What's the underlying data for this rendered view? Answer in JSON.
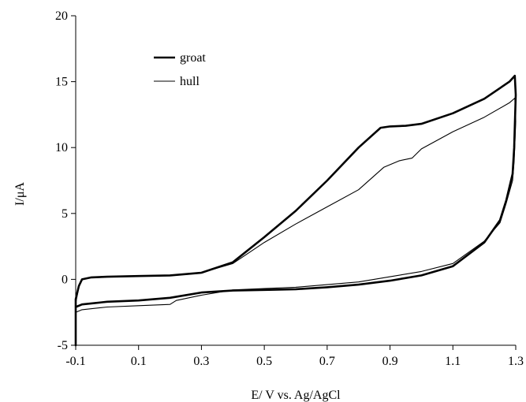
{
  "chart_data": {
    "type": "line",
    "title": "",
    "xlabel": "E/ V vs. Ag/AgCl",
    "ylabel": "I/μA",
    "xlim": [
      -0.1,
      1.3
    ],
    "ylim": [
      -5,
      20
    ],
    "x_ticks": [
      -0.1,
      0.1,
      0.3,
      0.5,
      0.7,
      0.9,
      1.1,
      1.3
    ],
    "y_ticks": [
      -5,
      0,
      5,
      10,
      15,
      20
    ],
    "x_tick_labels": [
      "-0.1",
      "0.1",
      "0.3",
      "0.5",
      "0.7",
      "0.9",
      "1.1",
      "1.3"
    ],
    "y_tick_labels": [
      "-5",
      "0",
      "5",
      "10",
      "15",
      "20"
    ],
    "grid": false,
    "legend_position": "top-left",
    "series": [
      {
        "name": "groat",
        "color": "#000000",
        "points": [
          [
            -0.1,
            -5.0
          ],
          [
            -0.1,
            -1.5
          ],
          [
            -0.09,
            -0.5
          ],
          [
            -0.08,
            0.0
          ],
          [
            -0.05,
            0.15
          ],
          [
            0.0,
            0.2
          ],
          [
            0.1,
            0.25
          ],
          [
            0.2,
            0.3
          ],
          [
            0.3,
            0.5
          ],
          [
            0.4,
            1.3
          ],
          [
            0.5,
            3.2
          ],
          [
            0.6,
            5.2
          ],
          [
            0.7,
            7.5
          ],
          [
            0.8,
            10.0
          ],
          [
            0.87,
            11.5
          ],
          [
            0.9,
            11.6
          ],
          [
            0.95,
            11.65
          ],
          [
            1.0,
            11.8
          ],
          [
            1.1,
            12.6
          ],
          [
            1.2,
            13.7
          ],
          [
            1.28,
            15.0
          ],
          [
            1.297,
            15.45
          ],
          [
            1.3,
            14.0
          ],
          [
            1.295,
            10.0
          ],
          [
            1.29,
            8.0
          ],
          [
            1.27,
            6.0
          ],
          [
            1.25,
            4.5
          ],
          [
            1.2,
            2.8
          ],
          [
            1.1,
            1.0
          ],
          [
            1.0,
            0.3
          ],
          [
            0.9,
            -0.1
          ],
          [
            0.8,
            -0.4
          ],
          [
            0.7,
            -0.6
          ],
          [
            0.6,
            -0.75
          ],
          [
            0.5,
            -0.8
          ],
          [
            0.4,
            -0.85
          ],
          [
            0.3,
            -1.0
          ],
          [
            0.2,
            -1.4
          ],
          [
            0.1,
            -1.6
          ],
          [
            0.0,
            -1.7
          ],
          [
            -0.08,
            -1.9
          ],
          [
            -0.1,
            -2.1
          ]
        ]
      },
      {
        "name": "hull",
        "color": "#000000",
        "points": [
          [
            -0.1,
            -5.0
          ],
          [
            -0.1,
            -1.8
          ],
          [
            -0.09,
            -0.6
          ],
          [
            -0.08,
            0.0
          ],
          [
            -0.05,
            0.15
          ],
          [
            0.0,
            0.2
          ],
          [
            0.1,
            0.25
          ],
          [
            0.2,
            0.3
          ],
          [
            0.3,
            0.5
          ],
          [
            0.4,
            1.2
          ],
          [
            0.5,
            2.8
          ],
          [
            0.6,
            4.2
          ],
          [
            0.7,
            5.5
          ],
          [
            0.8,
            6.8
          ],
          [
            0.88,
            8.5
          ],
          [
            0.93,
            9.0
          ],
          [
            0.97,
            9.2
          ],
          [
            1.0,
            9.9
          ],
          [
            1.1,
            11.2
          ],
          [
            1.2,
            12.3
          ],
          [
            1.28,
            13.4
          ],
          [
            1.297,
            13.75
          ],
          [
            1.3,
            12.0
          ],
          [
            1.295,
            9.0
          ],
          [
            1.29,
            7.5
          ],
          [
            1.27,
            5.8
          ],
          [
            1.25,
            4.3
          ],
          [
            1.2,
            2.9
          ],
          [
            1.1,
            1.2
          ],
          [
            1.0,
            0.6
          ],
          [
            0.9,
            0.2
          ],
          [
            0.8,
            -0.2
          ],
          [
            0.7,
            -0.4
          ],
          [
            0.6,
            -0.6
          ],
          [
            0.5,
            -0.7
          ],
          [
            0.4,
            -0.8
          ],
          [
            0.3,
            -1.2
          ],
          [
            0.22,
            -1.6
          ],
          [
            0.2,
            -1.9
          ],
          [
            0.1,
            -2.0
          ],
          [
            0.0,
            -2.1
          ],
          [
            -0.08,
            -2.3
          ],
          [
            -0.1,
            -2.5
          ]
        ]
      }
    ]
  }
}
